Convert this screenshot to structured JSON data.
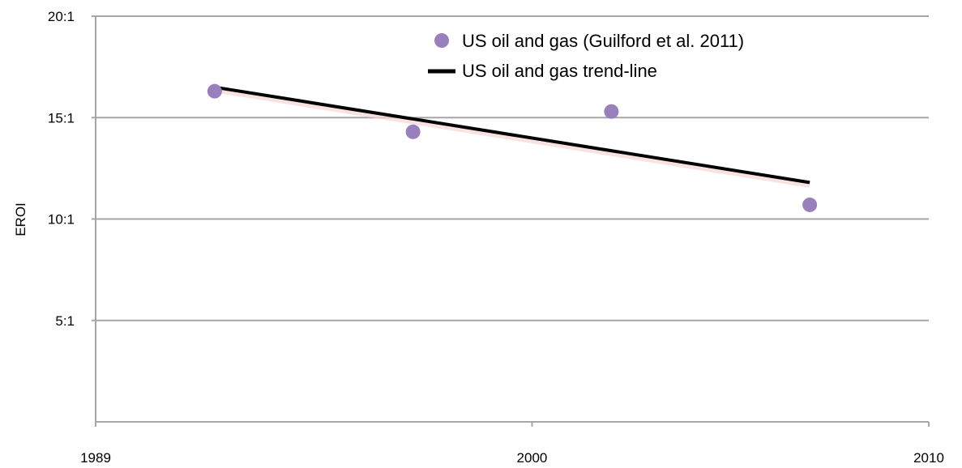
{
  "chart_data": {
    "type": "scatter",
    "title": "",
    "xlabel": "",
    "ylabel": "EROI",
    "xlim": [
      1989,
      2010
    ],
    "ylim": [
      0,
      20
    ],
    "x_ticks": [
      "1989",
      "2000",
      "2010"
    ],
    "y_ticks": [
      {
        "value": 5,
        "label": "5:1"
      },
      {
        "value": 10,
        "label": "10:1"
      },
      {
        "value": 15,
        "label": "15:1"
      },
      {
        "value": 20,
        "label": "20:1"
      }
    ],
    "grid": "horizontal",
    "legend_position": "top-right",
    "series": [
      {
        "name": "US oil and gas (Guilford et al. 2011)",
        "kind": "points",
        "color": "#9a7fbd",
        "points": [
          {
            "x": 1992,
            "y": 16.3
          },
          {
            "x": 1997,
            "y": 14.3
          },
          {
            "x": 2002,
            "y": 15.3
          },
          {
            "x": 2007,
            "y": 10.7
          }
        ]
      },
      {
        "name": "US oil and gas trend-line",
        "kind": "line",
        "color": "#000000",
        "points": [
          {
            "x": 1992,
            "y": 16.5
          },
          {
            "x": 2007,
            "y": 11.8
          }
        ]
      }
    ]
  }
}
